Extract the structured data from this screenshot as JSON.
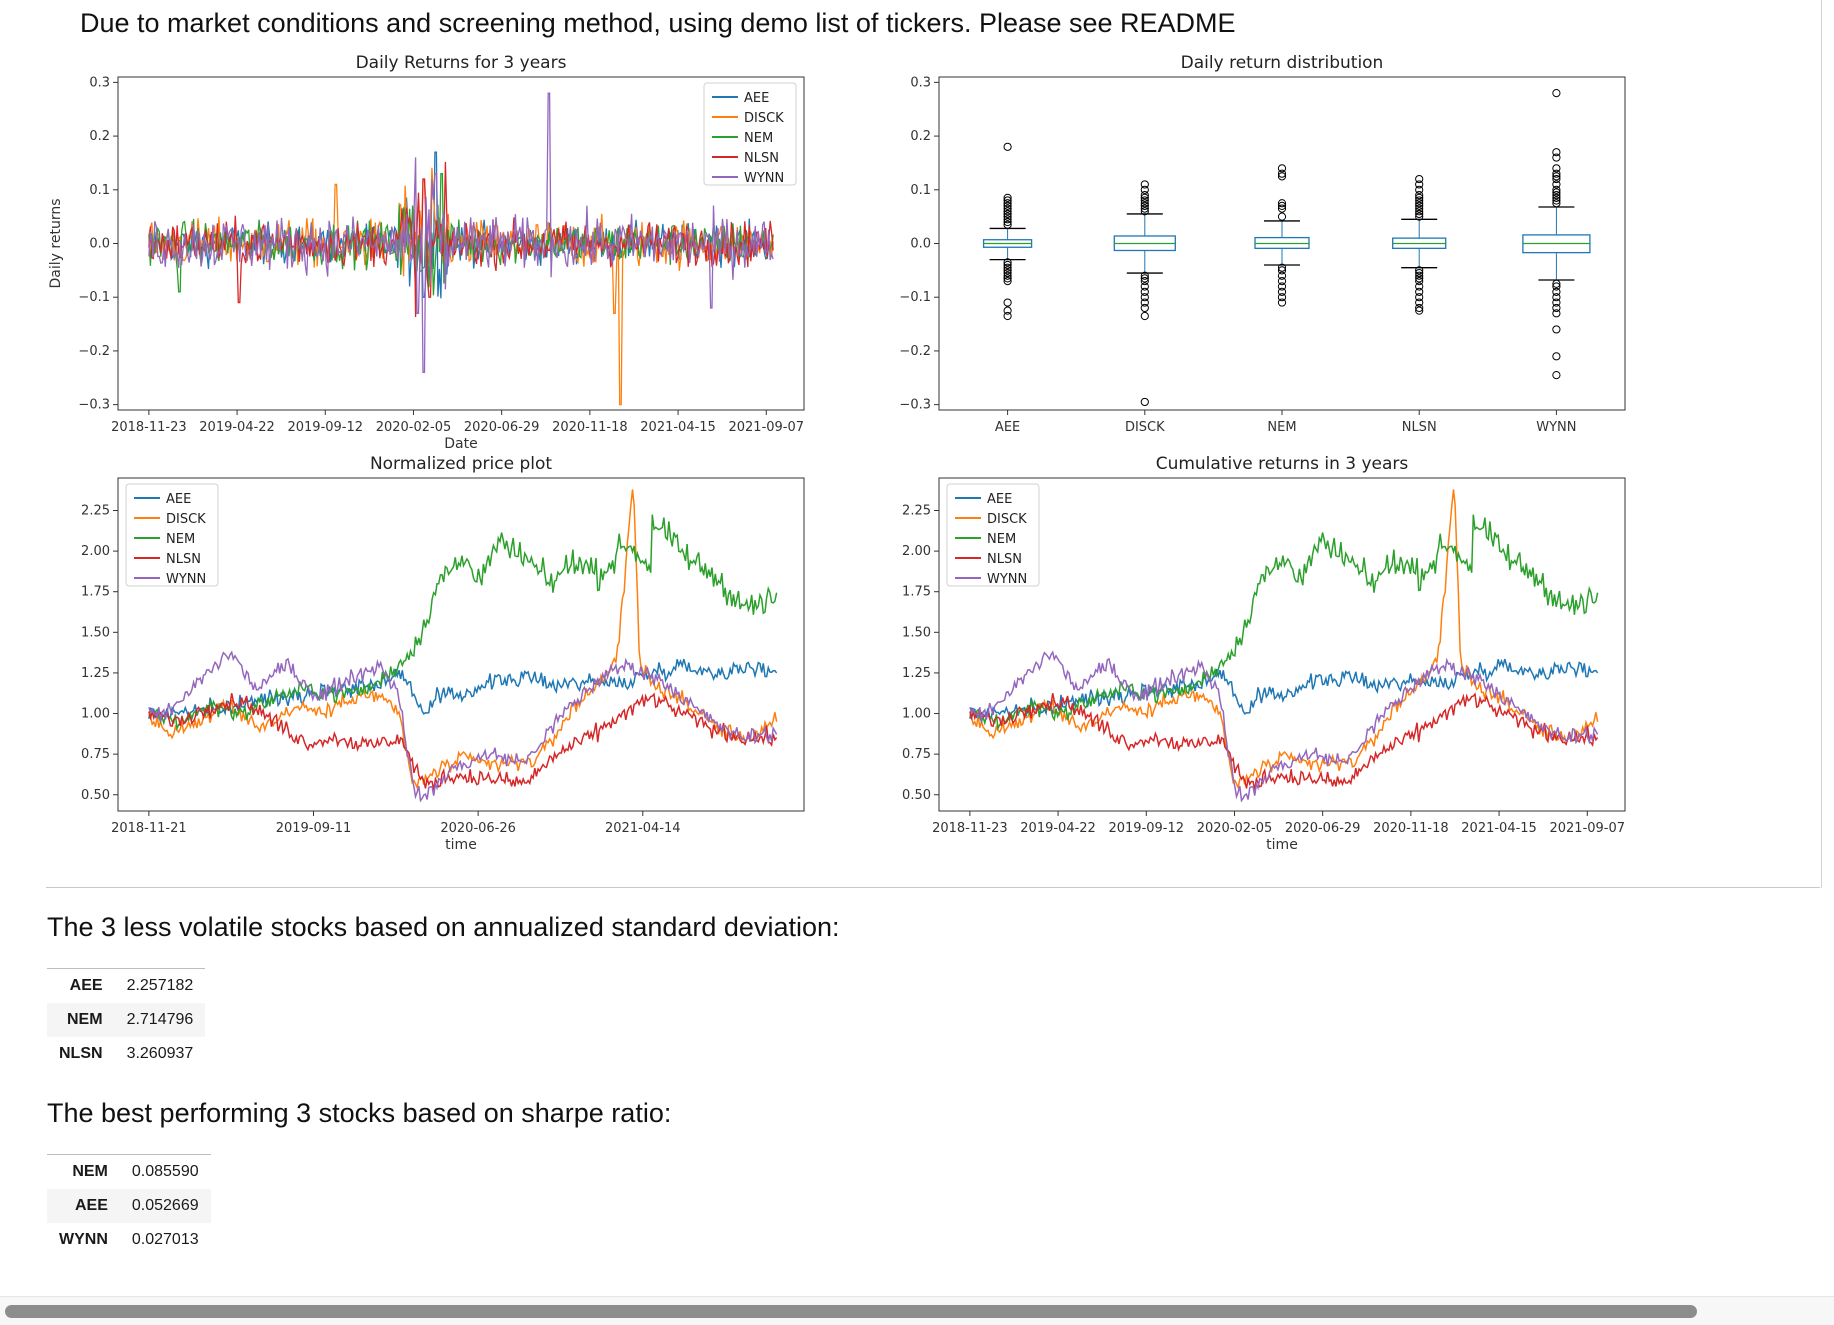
{
  "notebook": {
    "message": "Due to market conditions and screening method, using demo list of tickers. Please see README",
    "volatility_title": "The 3 less volatile stocks based on annualized standard deviation:",
    "volatility_rows": [
      {
        "ticker": "AEE",
        "value": "2.257182"
      },
      {
        "ticker": "NEM",
        "value": "2.714796"
      },
      {
        "ticker": "NLSN",
        "value": "3.260937"
      }
    ],
    "sharpe_title": "The best performing 3 stocks based on sharpe ratio:",
    "sharpe_rows": [
      {
        "ticker": "NEM",
        "value": "0.085590"
      },
      {
        "ticker": "AEE",
        "value": "0.052669"
      },
      {
        "ticker": "WYNN",
        "value": "0.027013"
      }
    ]
  },
  "colors": {
    "AEE": "#1f77b4",
    "DISCK": "#ff7f0e",
    "NEM": "#2ca02c",
    "NLSN": "#d62728",
    "WYNN": "#9467bd"
  },
  "chart_data": [
    {
      "type": "line",
      "title": "Daily Returns for 3 years",
      "xlabel": "Date",
      "ylabel": "Daily returns",
      "x_ticks": [
        "2018-11-23",
        "2019-04-22",
        "2019-09-12",
        "2020-02-05",
        "2020-06-29",
        "2020-11-18",
        "2021-04-15",
        "2021-09-07"
      ],
      "y_ticks": [
        -0.3,
        -0.2,
        -0.1,
        0.0,
        0.1,
        0.2,
        0.3
      ],
      "ylim": [
        -0.31,
        0.31
      ],
      "legend": "top-right",
      "series": [
        {
          "name": "AEE",
          "noise": 0.018,
          "spikes": [
            [
              0.46,
              0.17
            ],
            [
              0.44,
              -0.1
            ]
          ]
        },
        {
          "name": "DISCK",
          "noise": 0.022,
          "spikes": [
            [
              0.3,
              0.11
            ],
            [
              0.755,
              -0.3
            ],
            [
              0.745,
              -0.13
            ],
            [
              0.44,
              0.12
            ]
          ]
        },
        {
          "name": "NEM",
          "noise": 0.02,
          "spikes": [
            [
              0.05,
              -0.09
            ],
            [
              0.47,
              0.13
            ]
          ]
        },
        {
          "name": "NLSN",
          "noise": 0.02,
          "spikes": [
            [
              0.145,
              -0.11
            ],
            [
              0.44,
              0.12
            ],
            [
              0.45,
              -0.1
            ]
          ]
        },
        {
          "name": "WYNN",
          "noise": 0.025,
          "spikes": [
            [
              0.64,
              0.28
            ],
            [
              0.44,
              -0.24
            ],
            [
              0.43,
              -0.13
            ],
            [
              0.46,
              0.13
            ],
            [
              0.9,
              -0.12
            ]
          ]
        }
      ]
    },
    {
      "type": "box",
      "title": "Daily return distribution",
      "categories": [
        "AEE",
        "DISCK",
        "NEM",
        "NLSN",
        "WYNN"
      ],
      "y_ticks": [
        -0.3,
        -0.2,
        -0.1,
        0.0,
        0.1,
        0.2,
        0.3
      ],
      "ylim": [
        -0.31,
        0.31
      ],
      "boxes": [
        {
          "q1": -0.007,
          "median": 0.0,
          "q3": 0.007,
          "wlo": -0.03,
          "whi": 0.028,
          "outliers": [
            0.18,
            0.085,
            0.08,
            0.075,
            0.07,
            0.065,
            0.06,
            0.055,
            0.05,
            0.045,
            0.04,
            0.035,
            -0.035,
            -0.04,
            -0.045,
            -0.05,
            -0.055,
            -0.06,
            -0.065,
            -0.07,
            -0.11,
            -0.125,
            -0.135
          ]
        },
        {
          "q1": -0.013,
          "median": 0.0,
          "q3": 0.014,
          "wlo": -0.055,
          "whi": 0.055,
          "outliers": [
            0.11,
            0.1,
            0.09,
            0.085,
            0.08,
            0.075,
            0.07,
            0.065,
            0.06,
            -0.06,
            -0.065,
            -0.07,
            -0.08,
            -0.09,
            -0.1,
            -0.11,
            -0.12,
            -0.135,
            -0.295
          ]
        },
        {
          "q1": -0.009,
          "median": 0.0,
          "q3": 0.011,
          "wlo": -0.04,
          "whi": 0.042,
          "outliers": [
            0.14,
            0.13,
            0.125,
            0.075,
            0.07,
            0.065,
            0.05,
            -0.045,
            -0.05,
            -0.06,
            -0.07,
            -0.08,
            -0.09,
            -0.1,
            -0.11
          ]
        },
        {
          "q1": -0.009,
          "median": 0.0,
          "q3": 0.01,
          "wlo": -0.045,
          "whi": 0.045,
          "outliers": [
            0.12,
            0.11,
            0.1,
            0.09,
            0.085,
            0.08,
            0.075,
            0.07,
            0.065,
            0.06,
            0.055,
            0.05,
            -0.05,
            -0.055,
            -0.06,
            -0.065,
            -0.07,
            -0.08,
            -0.09,
            -0.1,
            -0.11,
            -0.12,
            -0.125
          ]
        },
        {
          "q1": -0.017,
          "median": 0.0,
          "q3": 0.016,
          "wlo": -0.068,
          "whi": 0.068,
          "outliers": [
            0.28,
            0.17,
            0.16,
            0.14,
            0.13,
            0.125,
            0.12,
            0.11,
            0.1,
            0.095,
            0.09,
            0.085,
            0.08,
            0.075,
            -0.075,
            -0.08,
            -0.09,
            -0.1,
            -0.11,
            -0.12,
            -0.13,
            -0.16,
            -0.21,
            -0.245
          ]
        }
      ]
    },
    {
      "type": "line",
      "title": "Normalized price plot",
      "xlabel": "time",
      "x_ticks": [
        "2018-11-21",
        "2019-09-11",
        "2020-06-26",
        "2021-04-14"
      ],
      "y_ticks": [
        0.5,
        0.75,
        1.0,
        1.25,
        1.5,
        1.75,
        2.0,
        2.25
      ],
      "ylim": [
        0.4,
        2.45
      ],
      "legend": "top-left",
      "series": [
        {
          "name": "AEE",
          "points": [
            [
              0,
              1.0
            ],
            [
              0.1,
              1.02
            ],
            [
              0.2,
              1.1
            ],
            [
              0.3,
              1.15
            ],
            [
              0.36,
              1.18
            ],
            [
              0.4,
              1.25
            ],
            [
              0.42,
              1.15
            ],
            [
              0.44,
              0.98
            ],
            [
              0.46,
              1.1
            ],
            [
              0.5,
              1.12
            ],
            [
              0.55,
              1.2
            ],
            [
              0.6,
              1.22
            ],
            [
              0.65,
              1.18
            ],
            [
              0.7,
              1.2
            ],
            [
              0.75,
              1.18
            ],
            [
              0.8,
              1.25
            ],
            [
              0.85,
              1.3
            ],
            [
              0.9,
              1.25
            ],
            [
              0.95,
              1.28
            ],
            [
              1.0,
              1.26
            ]
          ]
        },
        {
          "name": "DISCK",
          "points": [
            [
              0,
              1.0
            ],
            [
              0.03,
              0.88
            ],
            [
              0.08,
              0.95
            ],
            [
              0.12,
              1.05
            ],
            [
              0.18,
              0.92
            ],
            [
              0.24,
              1.05
            ],
            [
              0.28,
              1.0
            ],
            [
              0.33,
              1.12
            ],
            [
              0.37,
              1.1
            ],
            [
              0.4,
              1.0
            ],
            [
              0.42,
              0.55
            ],
            [
              0.46,
              0.65
            ],
            [
              0.5,
              0.72
            ],
            [
              0.56,
              0.68
            ],
            [
              0.62,
              0.72
            ],
            [
              0.68,
              1.05
            ],
            [
              0.72,
              1.2
            ],
            [
              0.745,
              1.35
            ],
            [
              0.76,
              1.9
            ],
            [
              0.772,
              2.4
            ],
            [
              0.782,
              1.3
            ],
            [
              0.8,
              1.2
            ],
            [
              0.86,
              1.05
            ],
            [
              0.92,
              0.88
            ],
            [
              0.96,
              0.85
            ],
            [
              1.0,
              0.95
            ]
          ]
        },
        {
          "name": "NEM",
          "points": [
            [
              0,
              1.0
            ],
            [
              0.05,
              0.95
            ],
            [
              0.1,
              1.05
            ],
            [
              0.15,
              1.0
            ],
            [
              0.2,
              1.1
            ],
            [
              0.25,
              1.15
            ],
            [
              0.3,
              1.12
            ],
            [
              0.35,
              1.15
            ],
            [
              0.4,
              1.3
            ],
            [
              0.43,
              1.45
            ],
            [
              0.46,
              1.8
            ],
            [
              0.5,
              1.95
            ],
            [
              0.53,
              1.85
            ],
            [
              0.56,
              2.05
            ],
            [
              0.6,
              1.95
            ],
            [
              0.64,
              1.8
            ],
            [
              0.68,
              1.95
            ],
            [
              0.72,
              1.85
            ],
            [
              0.76,
              2.05
            ],
            [
              0.8,
              1.9
            ],
            [
              0.8,
              2.2
            ],
            [
              0.86,
              1.95
            ],
            [
              0.9,
              1.85
            ],
            [
              0.95,
              1.65
            ],
            [
              1.0,
              1.7
            ]
          ]
        },
        {
          "name": "NLSN",
          "points": [
            [
              0,
              1.0
            ],
            [
              0.05,
              0.95
            ],
            [
              0.1,
              1.05
            ],
            [
              0.15,
              1.08
            ],
            [
              0.2,
              0.95
            ],
            [
              0.25,
              0.82
            ],
            [
              0.3,
              0.85
            ],
            [
              0.35,
              0.8
            ],
            [
              0.4,
              0.85
            ],
            [
              0.42,
              0.7
            ],
            [
              0.44,
              0.55
            ],
            [
              0.48,
              0.62
            ],
            [
              0.54,
              0.6
            ],
            [
              0.6,
              0.57
            ],
            [
              0.65,
              0.75
            ],
            [
              0.7,
              0.85
            ],
            [
              0.75,
              0.98
            ],
            [
              0.8,
              1.1
            ],
            [
              0.85,
              1.0
            ],
            [
              0.9,
              0.9
            ],
            [
              0.95,
              0.85
            ],
            [
              1.0,
              0.85
            ]
          ]
        },
        {
          "name": "WYNN",
          "points": [
            [
              0,
              1.0
            ],
            [
              0.04,
              1.02
            ],
            [
              0.08,
              1.2
            ],
            [
              0.13,
              1.38
            ],
            [
              0.17,
              1.15
            ],
            [
              0.22,
              1.3
            ],
            [
              0.27,
              1.1
            ],
            [
              0.32,
              1.22
            ],
            [
              0.37,
              1.3
            ],
            [
              0.4,
              1.1
            ],
            [
              0.42,
              0.55
            ],
            [
              0.44,
              0.48
            ],
            [
              0.48,
              0.65
            ],
            [
              0.54,
              0.75
            ],
            [
              0.6,
              0.7
            ],
            [
              0.66,
              1.0
            ],
            [
              0.72,
              1.22
            ],
            [
              0.76,
              1.3
            ],
            [
              0.82,
              1.2
            ],
            [
              0.88,
              1.0
            ],
            [
              0.94,
              0.85
            ],
            [
              1.0,
              0.88
            ]
          ]
        }
      ]
    },
    {
      "type": "line",
      "title": "Cumulative returns in 3 years",
      "xlabel": "time",
      "x_ticks": [
        "2018-11-23",
        "2019-04-22",
        "2019-09-12",
        "2020-02-05",
        "2020-06-29",
        "2020-11-18",
        "2021-04-15",
        "2021-09-07"
      ],
      "y_ticks": [
        0.5,
        0.75,
        1.0,
        1.25,
        1.5,
        1.75,
        2.0,
        2.25
      ],
      "ylim": [
        0.4,
        2.45
      ],
      "legend": "top-left",
      "copy_series_from": 2
    }
  ]
}
